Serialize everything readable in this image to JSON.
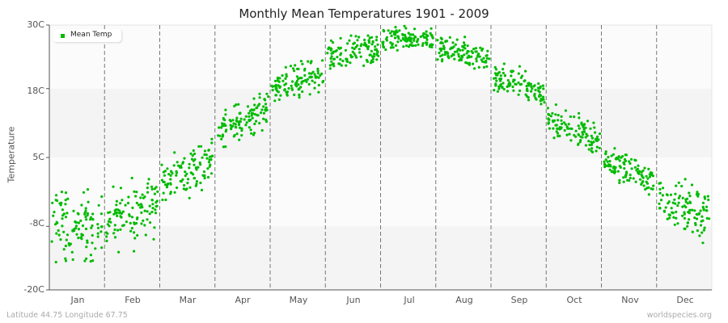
{
  "title": "Monthly Mean Temperatures 1901 - 2009",
  "footer": {
    "location": "Latitude 44.75 Longitude 67.75",
    "source": "worldspecies.org"
  },
  "legend": {
    "label": "Mean Temp",
    "color": "#00bb00"
  },
  "colors": {
    "point": "#00bb00",
    "band_light": "#fbfbfb",
    "band_dark": "#f4f4f4",
    "axis": "#555555",
    "divider": "#777777"
  },
  "chart_data": {
    "type": "scatter",
    "title": "Monthly Mean Temperatures 1901 - 2009",
    "xlabel": "",
    "ylabel": "Temperature",
    "ylim": [
      -20,
      30
    ],
    "yticks": [
      "30C",
      "18C",
      "5C",
      "-8C",
      "-20C"
    ],
    "ytick_values": [
      30,
      18,
      5,
      -8,
      -20
    ],
    "categories": [
      "Jan",
      "Feb",
      "Mar",
      "Apr",
      "May",
      "Jun",
      "Jul",
      "Aug",
      "Sep",
      "Oct",
      "Nov",
      "Dec"
    ],
    "series": [
      {
        "name": "Mean Temp",
        "points_per_month": 109,
        "mean": [
          -8.4,
          -5.7,
          2.3,
          12.3,
          19.5,
          24.8,
          27.6,
          24.8,
          18.9,
          10.3,
          2.4,
          -4.6
        ],
        "min": [
          -17,
          -14,
          -3,
          7,
          15,
          19,
          23,
          21,
          15,
          6,
          -2,
          -12
        ],
        "max": [
          2,
          3,
          9,
          17,
          24,
          28,
          30,
          28,
          23,
          15,
          7,
          3
        ]
      }
    ],
    "legend_position": "top-left",
    "grid": "horizontal bands + dashed month dividers"
  }
}
